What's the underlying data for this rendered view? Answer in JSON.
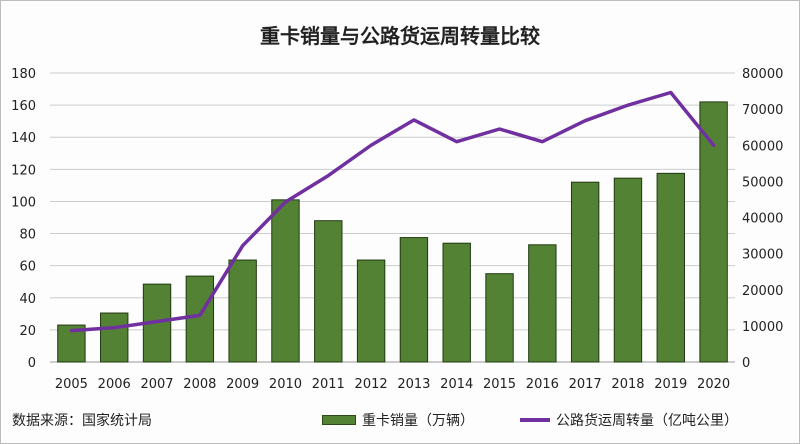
{
  "chart_data": {
    "type": "bar+line",
    "title": "重卡销量与公路货运周转量比较",
    "categories": [
      "2005",
      "2006",
      "2007",
      "2008",
      "2009",
      "2010",
      "2011",
      "2012",
      "2013",
      "2014",
      "2015",
      "2016",
      "2017",
      "2018",
      "2019",
      "2020"
    ],
    "series": [
      {
        "name": "重卡销量（万辆）",
        "type": "bar",
        "axis": "left",
        "color": "#548235",
        "values": [
          23,
          30.5,
          48.5,
          53.5,
          63.5,
          101,
          88,
          63.5,
          77.5,
          74,
          55,
          73,
          112,
          114.5,
          117.5,
          162
        ]
      },
      {
        "name": "公路货运周转量（亿吨公里）",
        "type": "line",
        "axis": "right",
        "color": "#7030a0",
        "values": [
          8700,
          9500,
          11200,
          12900,
          32200,
          44300,
          51600,
          60000,
          67000,
          61000,
          64500,
          61000,
          66800,
          71100,
          74600,
          60000
        ]
      }
    ],
    "left_axis": {
      "ylim": [
        0,
        180
      ],
      "ticks": [
        "0",
        "20",
        "40",
        "60",
        "80",
        "100",
        "120",
        "140",
        "160",
        "180"
      ]
    },
    "right_axis": {
      "ylim": [
        0,
        80000
      ],
      "ticks": [
        "0",
        "10000",
        "20000",
        "30000",
        "40000",
        "50000",
        "60000",
        "70000",
        "80000"
      ]
    },
    "grid": true,
    "legend": "bottom"
  },
  "source": "数据来源：国家统计局"
}
